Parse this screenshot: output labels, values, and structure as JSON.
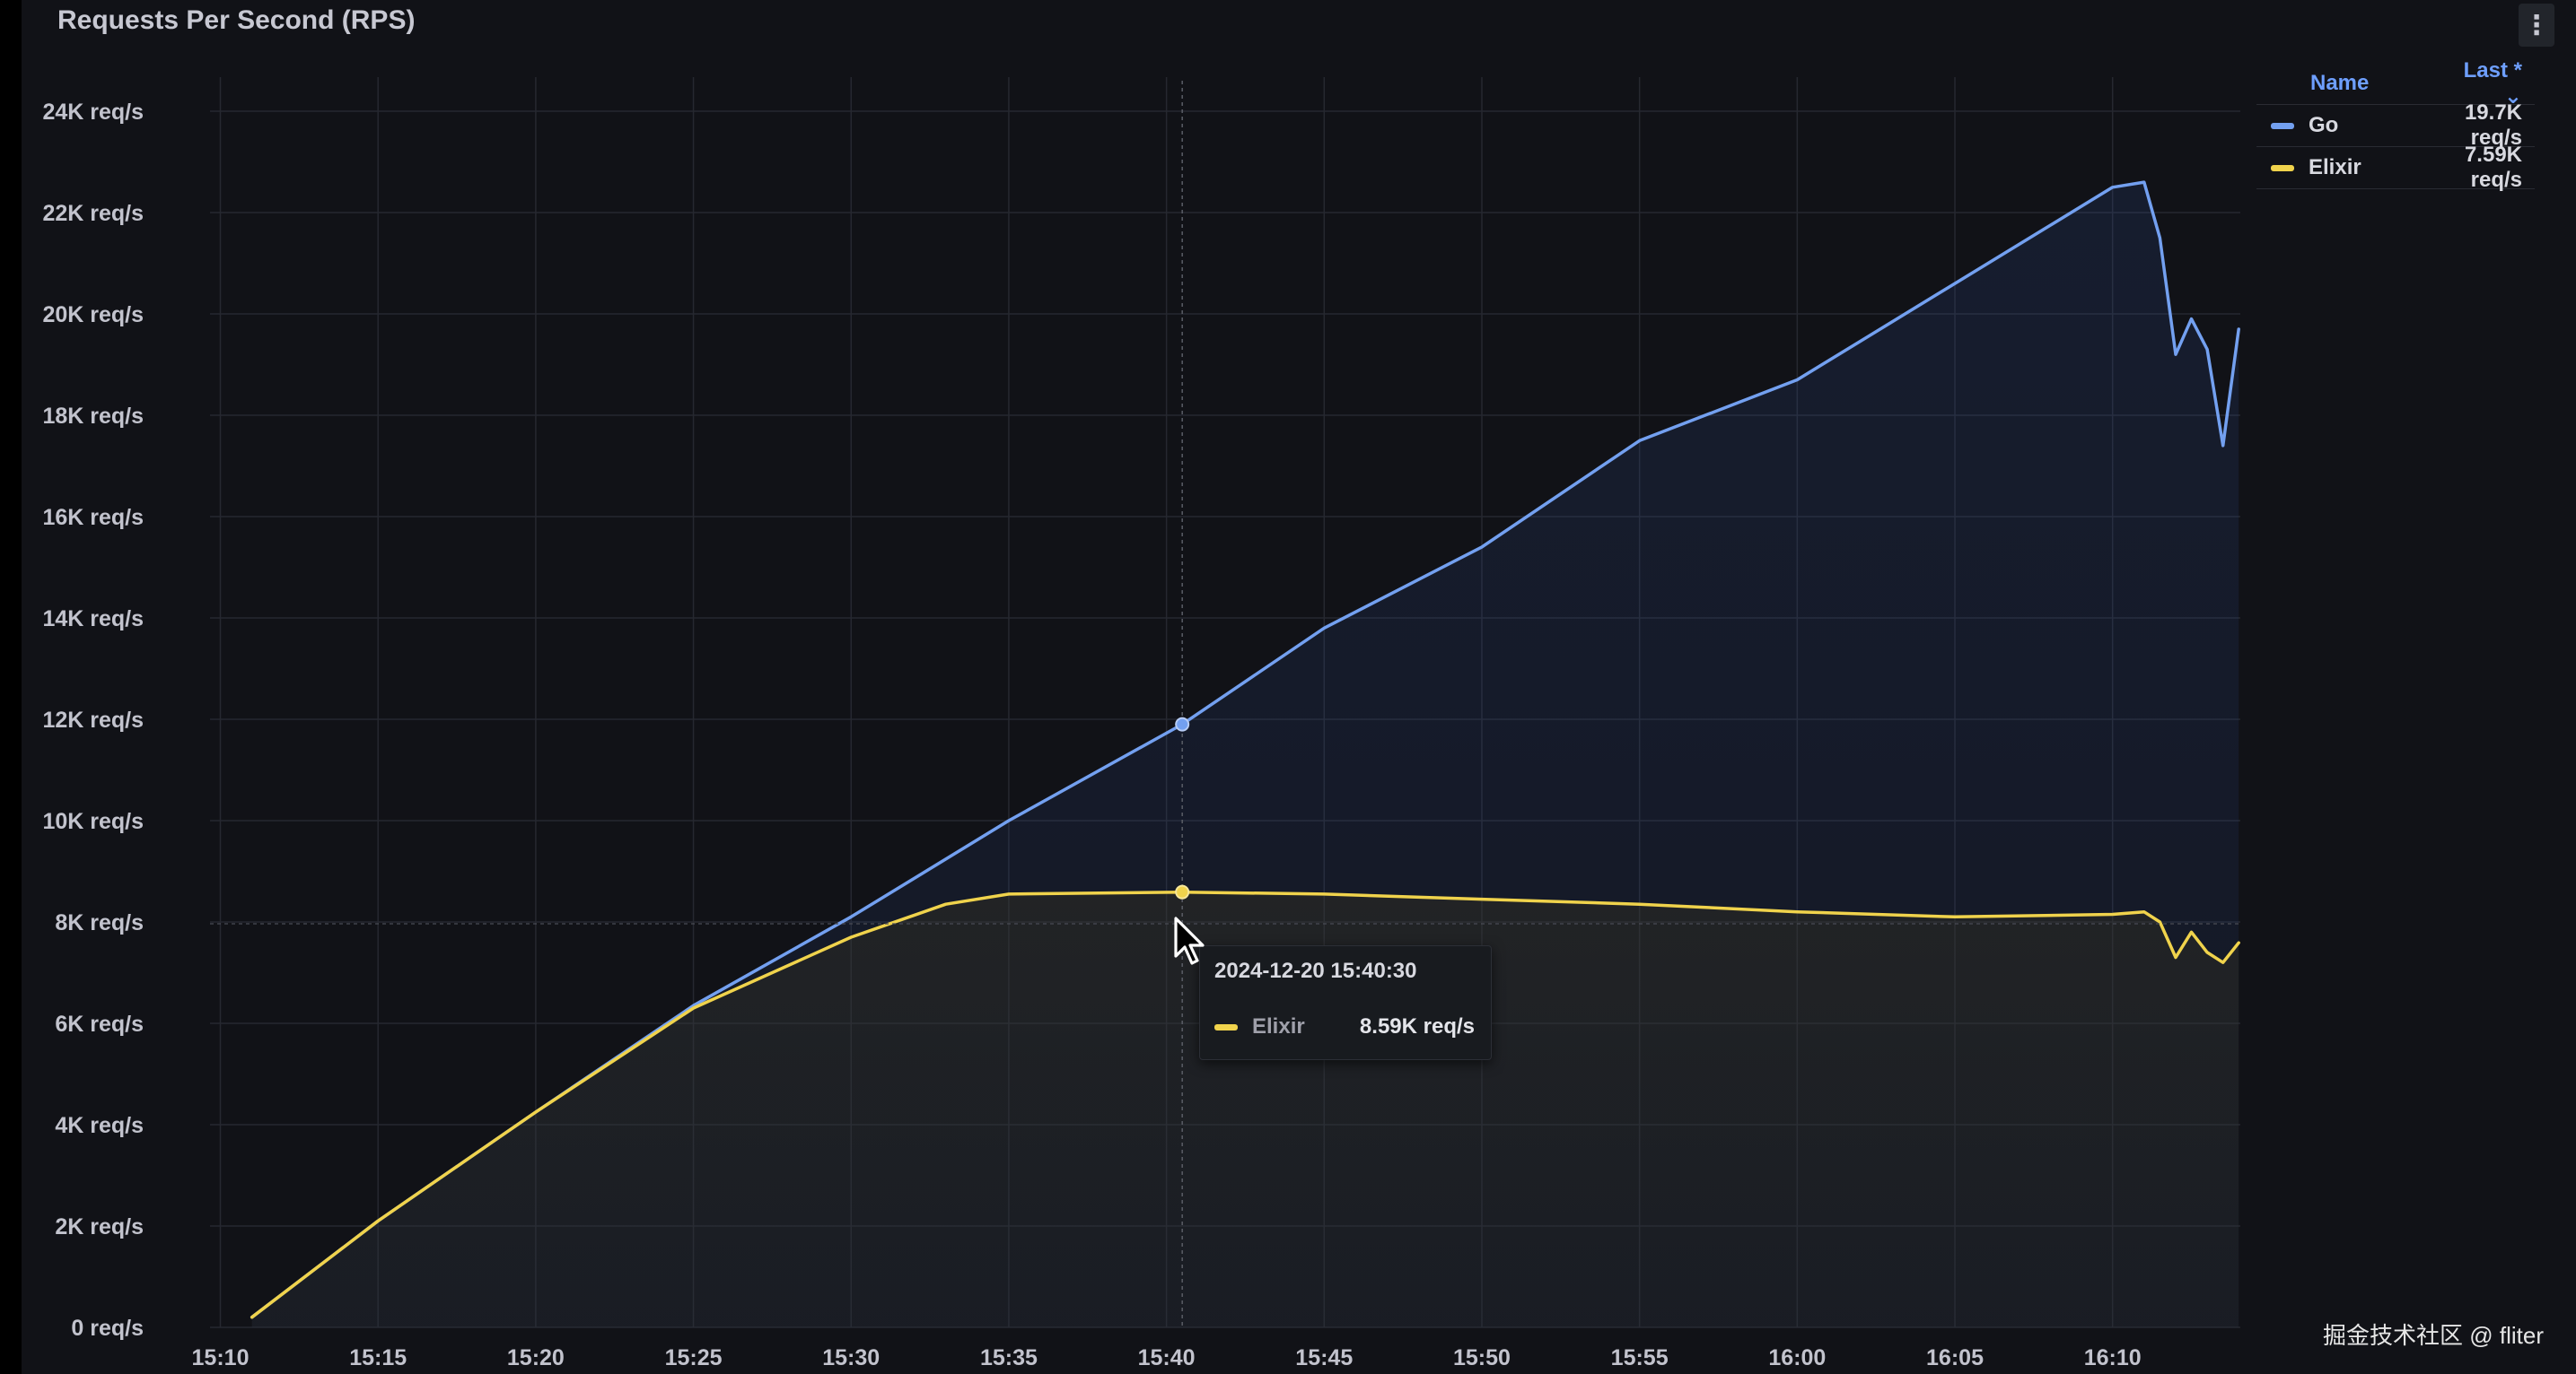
{
  "panel": {
    "title": "Requests Per Second (RPS)"
  },
  "legend": {
    "header_name": "Name",
    "header_last": "Last *",
    "rows": [
      {
        "name": "Go",
        "value": "19.7K req/s",
        "color": "#73a0f0"
      },
      {
        "name": "Elixir",
        "value": "7.59K req/s",
        "color": "#f0d34c"
      }
    ]
  },
  "tooltip": {
    "time": "2024-12-20 15:40:30",
    "series": "Elixir",
    "value": "8.59K req/s"
  },
  "watermark": "掘金技术社区 @ fliter",
  "chart_data": {
    "type": "line",
    "title": "Requests Per Second (RPS)",
    "ylim": [
      0,
      24000
    ],
    "xlim": [
      "15:10",
      "16:14"
    ],
    "y_ticks": [
      {
        "v": 0,
        "label": "0 req/s"
      },
      {
        "v": 2000,
        "label": "2K req/s"
      },
      {
        "v": 4000,
        "label": "4K req/s"
      },
      {
        "v": 6000,
        "label": "6K req/s"
      },
      {
        "v": 8000,
        "label": "8K req/s"
      },
      {
        "v": 10000,
        "label": "10K req/s"
      },
      {
        "v": 12000,
        "label": "12K req/s"
      },
      {
        "v": 14000,
        "label": "14K req/s"
      },
      {
        "v": 16000,
        "label": "16K req/s"
      },
      {
        "v": 18000,
        "label": "18K req/s"
      },
      {
        "v": 20000,
        "label": "20K req/s"
      },
      {
        "v": 22000,
        "label": "22K req/s"
      },
      {
        "v": 24000,
        "label": "24K req/s"
      }
    ],
    "x_ticks": [
      "15:10",
      "15:15",
      "15:20",
      "15:25",
      "15:30",
      "15:35",
      "15:40",
      "15:45",
      "15:50",
      "15:55",
      "16:00",
      "16:05",
      "16:10"
    ],
    "grid": true,
    "legend_position": "right",
    "series": [
      {
        "name": "Go",
        "color": "#73a0f0",
        "x": [
          "15:11",
          "15:15",
          "15:20",
          "15:25",
          "15:30",
          "15:35",
          "15:40:30",
          "15:45",
          "15:50",
          "15:55",
          "16:00",
          "16:05",
          "16:10",
          "16:11",
          "16:11:30",
          "16:12",
          "16:12:30",
          "16:13",
          "16:13:30",
          "16:14"
        ],
        "y": [
          200,
          2100,
          4250,
          6350,
          8100,
          10000,
          11900,
          13800,
          15400,
          17500,
          18700,
          20600,
          22500,
          22600,
          21500,
          19200,
          19900,
          19300,
          17400,
          19700
        ]
      },
      {
        "name": "Elixir",
        "color": "#f0d34c",
        "x": [
          "15:11",
          "15:15",
          "15:20",
          "15:25",
          "15:30",
          "15:33",
          "15:35",
          "15:40:30",
          "15:45",
          "15:50",
          "15:55",
          "16:00",
          "16:05",
          "16:10",
          "16:11",
          "16:11:30",
          "16:12",
          "16:12:30",
          "16:13",
          "16:13:30",
          "16:14"
        ],
        "y": [
          200,
          2100,
          4250,
          6300,
          7700,
          8350,
          8550,
          8590,
          8550,
          8450,
          8350,
          8200,
          8100,
          8150,
          8200,
          8000,
          7300,
          7800,
          7400,
          7200,
          7590
        ]
      }
    ]
  }
}
